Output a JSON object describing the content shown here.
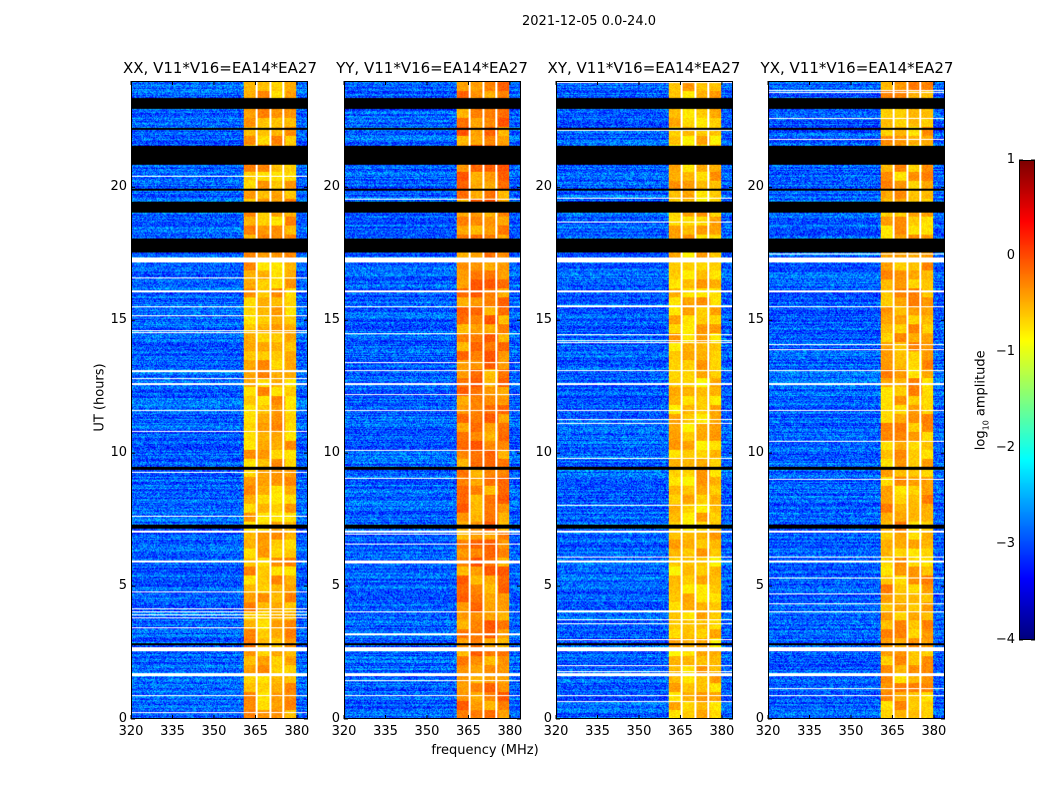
{
  "chart_data": {
    "type": "heatmap",
    "title": "2021-12-05 0.0-24.0",
    "xlabel": "frequency (MHz)",
    "ylabel": "UT (hours)",
    "xlim": [
      320,
      384
    ],
    "ylim": [
      0,
      24
    ],
    "xticks": [
      "320",
      "335",
      "350",
      "365",
      "380"
    ],
    "xtick_values": [
      320,
      335,
      350,
      365,
      380
    ],
    "yticks": [
      "0",
      "5",
      "10",
      "15",
      "20"
    ],
    "ytick_values": [
      0,
      5,
      10,
      15,
      20
    ],
    "panels": [
      {
        "title": "XX, V11*V16=EA14*EA27",
        "band_level": -0.6,
        "background_level": -2.9
      },
      {
        "title": "YY, V11*V16=EA14*EA27",
        "band_level": -0.4,
        "background_level": -2.9
      },
      {
        "title": "XY, V11*V16=EA14*EA27",
        "band_level": -0.7,
        "background_level": -2.9
      },
      {
        "title": "YX, V11*V16=EA14*EA27",
        "band_level": -0.6,
        "background_level": -2.9
      }
    ],
    "bright_band_mhz": [
      360.5,
      380
    ],
    "channel_gaps_mhz": [
      365.2,
      370.3,
      375.3
    ],
    "flagged_black_hours": [
      [
        23.0,
        23.4
      ],
      [
        22.2,
        22.3
      ],
      [
        20.9,
        21.6
      ],
      [
        19.9,
        20.0
      ],
      [
        19.1,
        19.5
      ],
      [
        17.6,
        18.1
      ],
      [
        9.4,
        9.5
      ],
      [
        7.15,
        7.3
      ],
      [
        2.75,
        2.85
      ]
    ],
    "flagged_white_hours": [
      [
        17.2,
        17.4
      ],
      [
        15.5,
        15.55
      ],
      [
        7.0,
        7.1
      ],
      [
        2.55,
        2.7
      ],
      [
        1.6,
        1.7
      ],
      [
        0.85,
        0.9
      ],
      [
        4.0,
        4.05
      ],
      [
        5.9,
        5.95
      ],
      [
        11.6,
        11.65
      ],
      [
        13.1,
        13.15
      ],
      [
        16.1,
        16.15
      ],
      [
        12.6,
        12.65
      ]
    ],
    "colorbar": {
      "label": "log10 amplitude",
      "label_main": "log",
      "label_sub": "10",
      "label_rest": " amplitude",
      "colormap": "jet",
      "range": [
        -4,
        1
      ],
      "ticks": [
        "−4",
        "−3",
        "−2",
        "−1",
        "0",
        "1"
      ],
      "tick_values": [
        -4,
        -3,
        -2,
        -1,
        0,
        1
      ]
    }
  }
}
